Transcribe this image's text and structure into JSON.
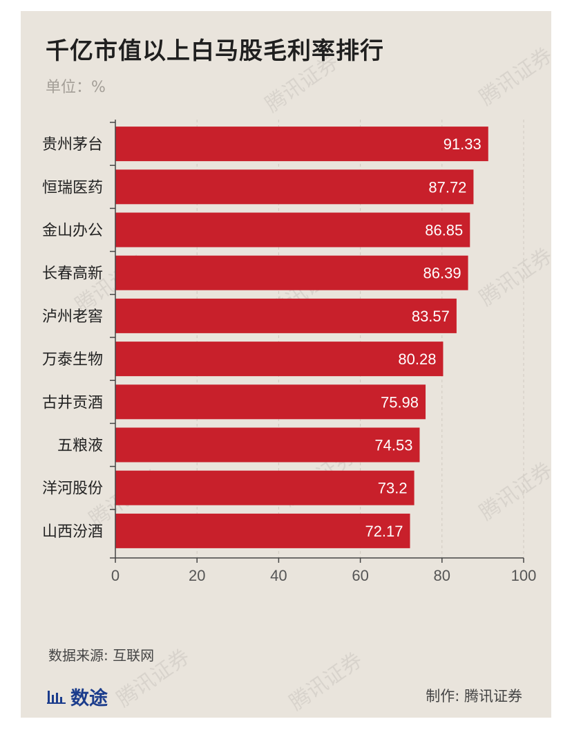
{
  "header": {
    "title": "千亿市值以上白马股毛利率排行",
    "unit": "单位：%"
  },
  "footer": {
    "source": "数据来源: 互联网",
    "brand": "数途",
    "maker": "制作: 腾讯证券"
  },
  "watermark": "腾讯证券",
  "colors": {
    "bar": "#c8202b",
    "background": "#e9e4dc",
    "brand": "#1b3c8c"
  },
  "chart_data": {
    "type": "bar",
    "orientation": "horizontal",
    "title": "千亿市值以上白马股毛利率排行",
    "unit": "%",
    "categories": [
      "贵州茅台",
      "恒瑞医药",
      "金山办公",
      "长春高新",
      "泸州老窖",
      "万泰生物",
      "古井贡酒",
      "五粮液",
      "洋河股份",
      "山西汾酒"
    ],
    "values": [
      91.33,
      87.72,
      86.85,
      86.39,
      83.57,
      80.28,
      75.98,
      74.53,
      73.2,
      72.17
    ],
    "value_labels": [
      "91.33",
      "87.72",
      "86.85",
      "86.39",
      "83.57",
      "80.28",
      "75.98",
      "74.53",
      "73.2",
      "72.17"
    ],
    "xlim": [
      0,
      100
    ],
    "xticks": [
      0,
      20,
      40,
      60,
      80,
      100
    ],
    "grid": "dashed vertical"
  }
}
